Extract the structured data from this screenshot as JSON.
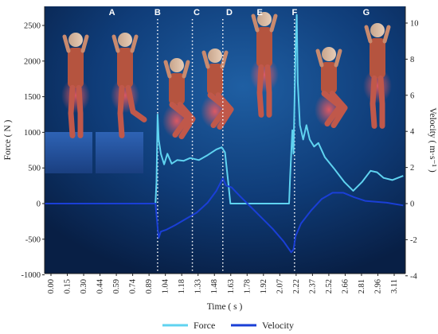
{
  "chart_data": {
    "type": "line",
    "xlabel": "Time ( s )",
    "ylabel_left": "Force ( N )",
    "ylabel_right": "Velocity ( m·s⁻¹ )",
    "x_tick_labels": [
      "0.00",
      "0.15",
      "0.30",
      "0.44",
      "0.59",
      "0.74",
      "0.89",
      "1.04",
      "1.18",
      "1.33",
      "1.48",
      "1.63",
      "1.78",
      "1.92",
      "2.07",
      "2.22",
      "2.37",
      "2.52",
      "2.66",
      "2.81",
      "2.96",
      "3.11"
    ],
    "xlim": [
      0,
      3.32
    ],
    "y_left_ticks": [
      -1000,
      -500,
      0,
      500,
      1000,
      1500,
      2000,
      2500
    ],
    "y_left_lim": [
      -1000,
      2750
    ],
    "y_right_ticks": [
      -4,
      -2,
      0,
      2,
      4,
      6,
      8,
      10
    ],
    "y_right_lim": [
      -4,
      11
    ],
    "phase_labels": [
      {
        "label": "A",
        "x": 0.62
      },
      {
        "label": "B",
        "x": 1.04
      },
      {
        "label": "C",
        "x": 1.4
      },
      {
        "label": "D",
        "x": 1.7
      },
      {
        "label": "E",
        "x": 1.98
      },
      {
        "label": "F",
        "x": 2.3
      },
      {
        "label": "G",
        "x": 2.96
      }
    ],
    "phase_dividers": [
      1.04,
      1.36,
      1.64,
      2.3
    ],
    "grid": false,
    "legend_position": "bottom",
    "series": [
      {
        "name": "Force",
        "axis": "left",
        "color": "#5fd3f0",
        "points": [
          [
            0,
            0
          ],
          [
            1.02,
            0
          ],
          [
            1.03,
            300
          ],
          [
            1.04,
            1250
          ],
          [
            1.05,
            900
          ],
          [
            1.07,
            700
          ],
          [
            1.1,
            550
          ],
          [
            1.13,
            700
          ],
          [
            1.17,
            560
          ],
          [
            1.22,
            610
          ],
          [
            1.28,
            600
          ],
          [
            1.34,
            640
          ],
          [
            1.42,
            610
          ],
          [
            1.5,
            680
          ],
          [
            1.58,
            760
          ],
          [
            1.63,
            790
          ],
          [
            1.66,
            720
          ],
          [
            1.69,
            300
          ],
          [
            1.71,
            0
          ],
          [
            2.25,
            0
          ],
          [
            2.26,
            400
          ],
          [
            2.28,
            1030
          ],
          [
            2.29,
            700
          ],
          [
            2.31,
            2200
          ],
          [
            2.32,
            2650
          ],
          [
            2.33,
            1700
          ],
          [
            2.35,
            1100
          ],
          [
            2.38,
            900
          ],
          [
            2.41,
            1100
          ],
          [
            2.44,
            900
          ],
          [
            2.48,
            800
          ],
          [
            2.52,
            850
          ],
          [
            2.58,
            650
          ],
          [
            2.66,
            500
          ],
          [
            2.76,
            300
          ],
          [
            2.84,
            180
          ],
          [
            2.92,
            300
          ],
          [
            3.0,
            460
          ],
          [
            3.06,
            440
          ],
          [
            3.12,
            360
          ],
          [
            3.2,
            330
          ],
          [
            3.3,
            390
          ]
        ]
      },
      {
        "name": "Velocity",
        "axis": "right",
        "color": "#1a3fd6",
        "points": [
          [
            0,
            0
          ],
          [
            1.02,
            0
          ],
          [
            1.04,
            -1.3
          ],
          [
            1.05,
            -1.9
          ],
          [
            1.07,
            -1.55
          ],
          [
            1.12,
            -1.45
          ],
          [
            1.2,
            -1.2
          ],
          [
            1.3,
            -0.85
          ],
          [
            1.4,
            -0.5
          ],
          [
            1.5,
            0.05
          ],
          [
            1.58,
            0.7
          ],
          [
            1.64,
            1.4
          ],
          [
            1.67,
            1.0
          ],
          [
            1.72,
            0.9
          ],
          [
            1.8,
            0.4
          ],
          [
            1.9,
            -0.2
          ],
          [
            2.0,
            -0.8
          ],
          [
            2.1,
            -1.4
          ],
          [
            2.2,
            -2.1
          ],
          [
            2.27,
            -2.7
          ],
          [
            2.29,
            -2.55
          ],
          [
            2.31,
            -1.8
          ],
          [
            2.36,
            -1.1
          ],
          [
            2.45,
            -0.4
          ],
          [
            2.55,
            0.25
          ],
          [
            2.65,
            0.6
          ],
          [
            2.75,
            0.6
          ],
          [
            2.85,
            0.35
          ],
          [
            2.95,
            0.15
          ],
          [
            3.05,
            0.1
          ],
          [
            3.15,
            0.05
          ],
          [
            3.3,
            -0.1
          ]
        ]
      }
    ]
  },
  "colors": {
    "panel_background": "#0c2a5a",
    "force": "#5fd3f0",
    "velocity": "#1a3fd6",
    "divider": "#ffffff"
  }
}
